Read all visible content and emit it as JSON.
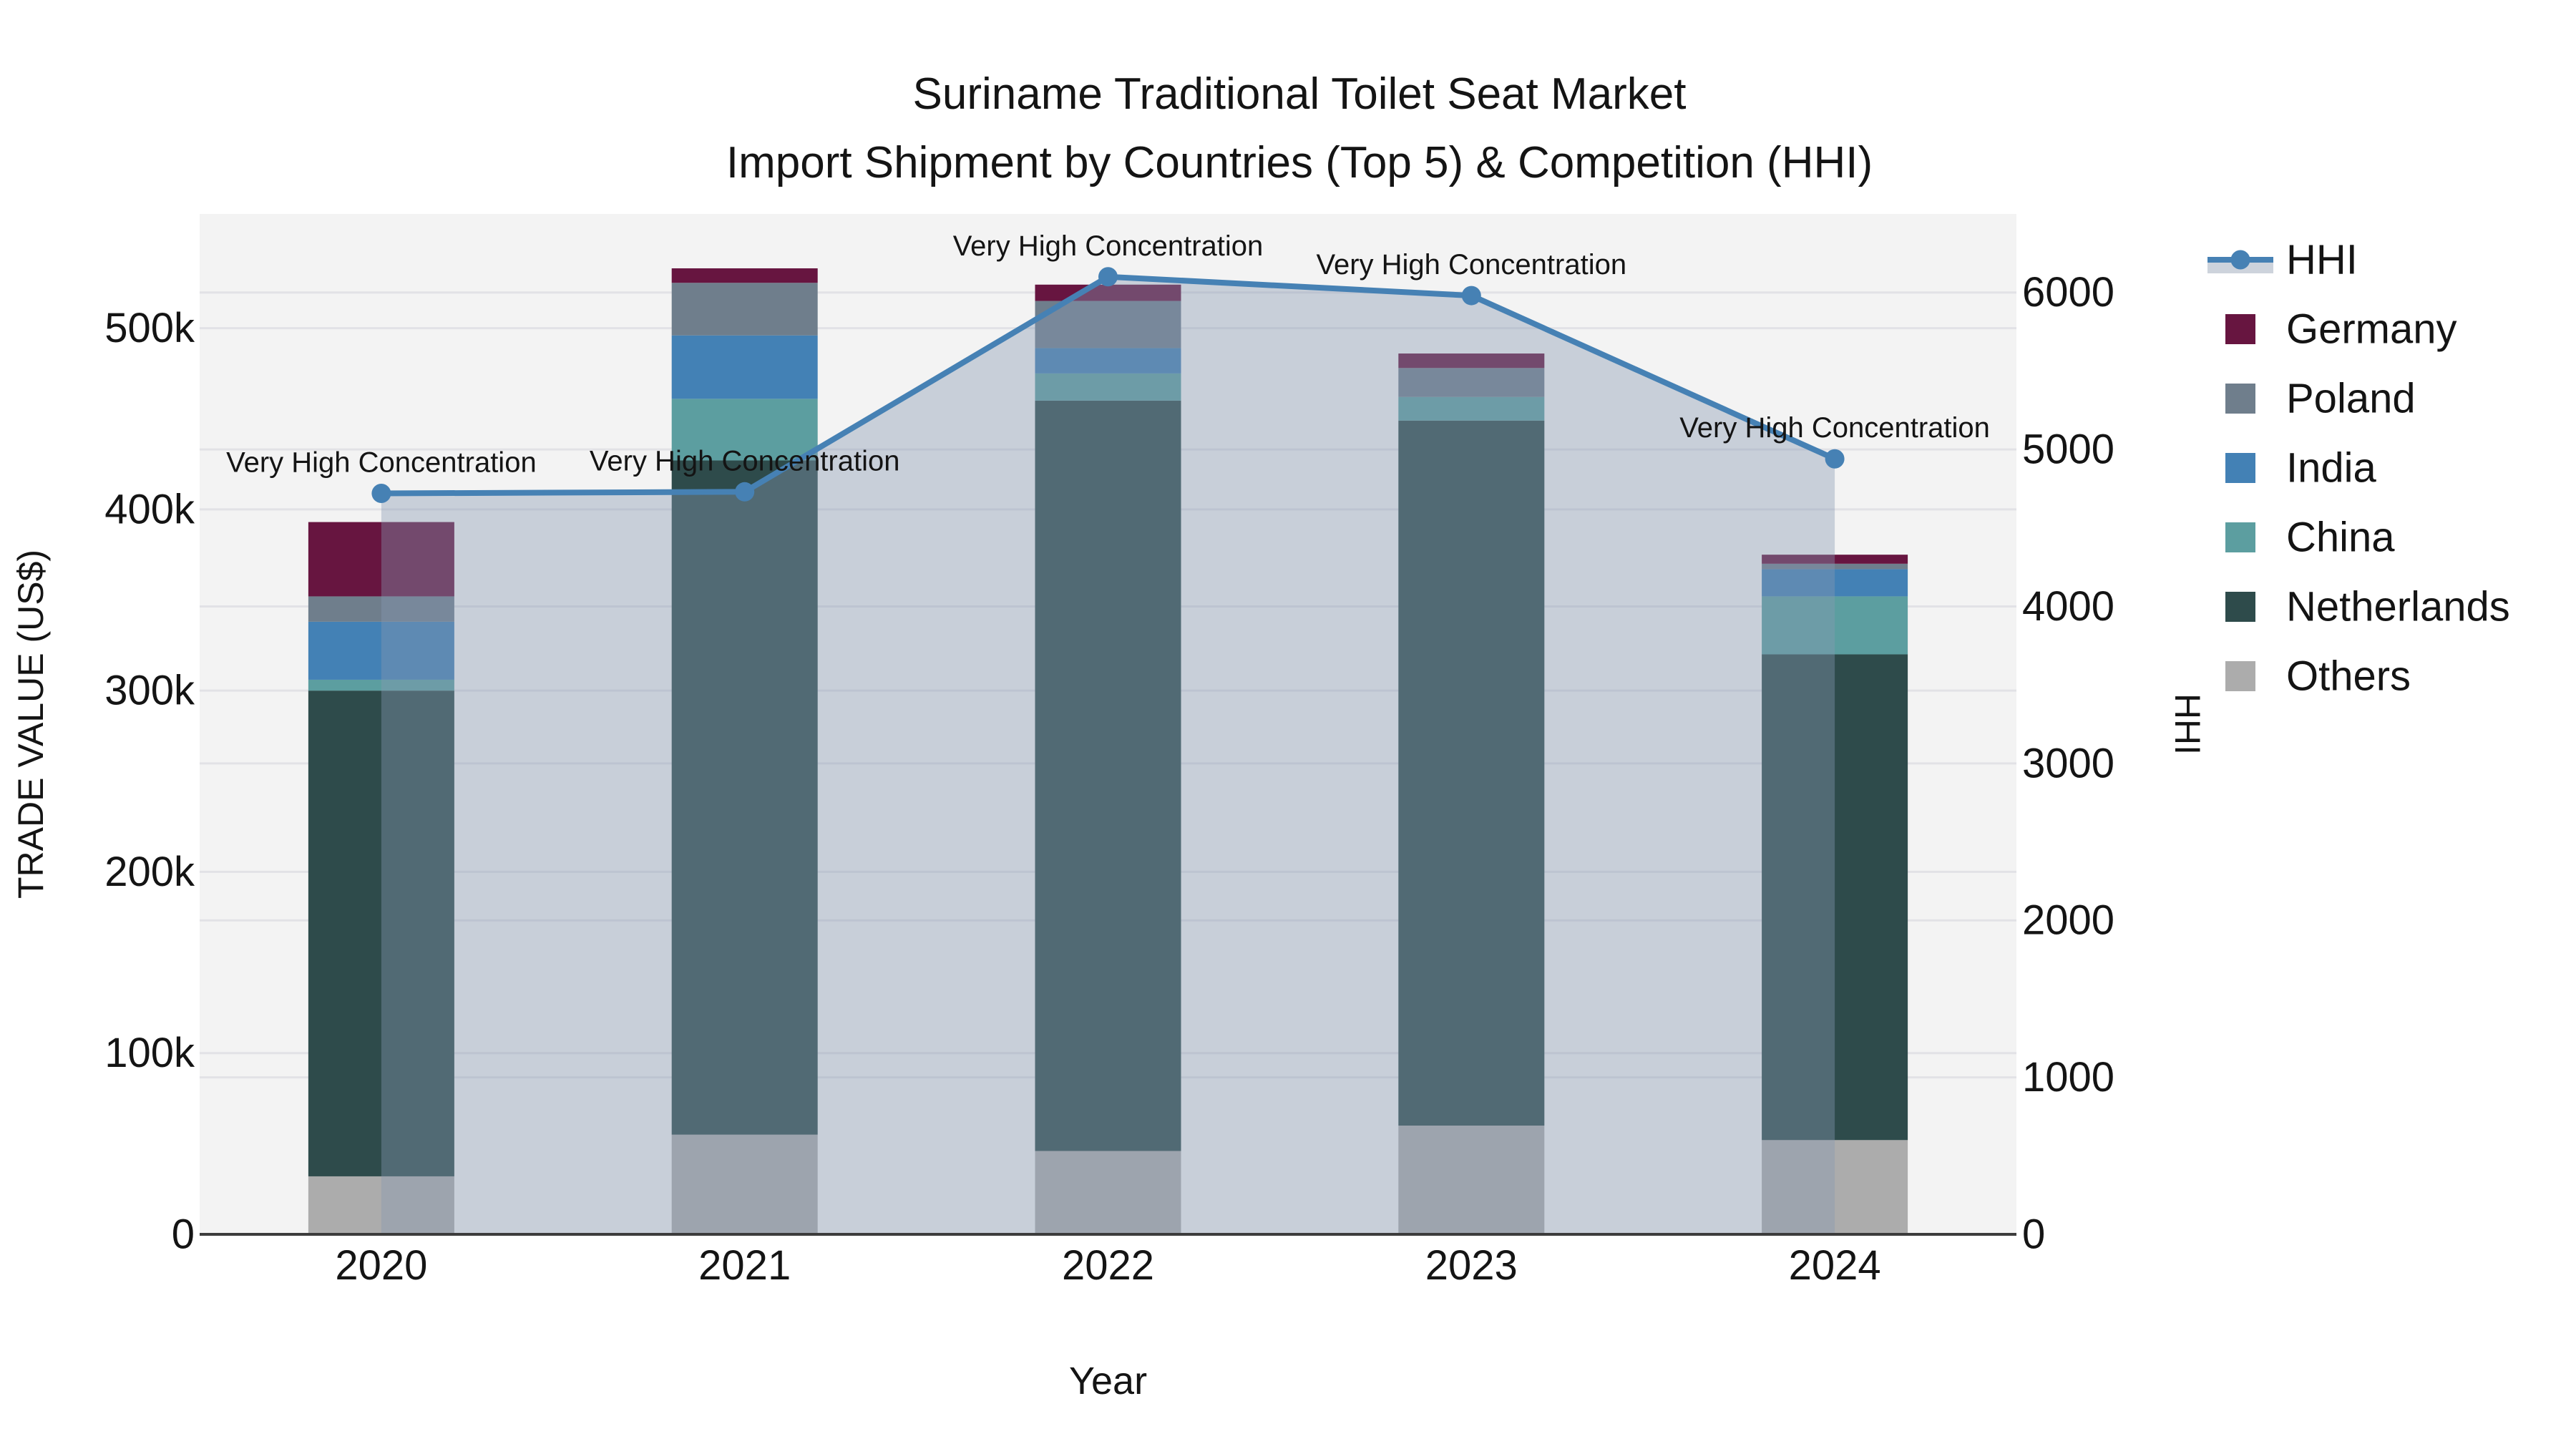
{
  "title": {
    "line1": "Suriname Traditional Toilet Seat Market",
    "line2": "Import Shipment by Countries (Top 5) & Competition (HHI)"
  },
  "chart_data": {
    "type": "bar+line",
    "categories": [
      "2020",
      "2021",
      "2022",
      "2023",
      "2024"
    ],
    "xlabel": "Year",
    "ylabel_left": "TRADE VALUE (US$)",
    "ylabel_right": "HHI",
    "y_left_ticks": [
      "0",
      "100k",
      "200k",
      "300k",
      "400k",
      "500k"
    ],
    "y_left_tick_values": [
      0,
      100000,
      200000,
      300000,
      400000,
      500000
    ],
    "ylim_left": [
      0,
      563000
    ],
    "y_right_ticks": [
      "0",
      "1000",
      "2000",
      "3000",
      "4000",
      "5000",
      "6000"
    ],
    "y_right_tick_values": [
      0,
      1000,
      2000,
      3000,
      4000,
      5000,
      6000
    ],
    "ylim_right": [
      0,
      6500
    ],
    "grid": true,
    "legend_position": "right",
    "series": [
      {
        "name": "Others",
        "color": "#ACACAC",
        "values": [
          32000,
          55000,
          46000,
          60000,
          52000
        ]
      },
      {
        "name": "Netherlands",
        "color": "#2E4B4B",
        "values": [
          268000,
          372000,
          414000,
          389000,
          268000
        ]
      },
      {
        "name": "China",
        "color": "#5C9EA0",
        "values": [
          6000,
          34000,
          15000,
          13000,
          32000
        ]
      },
      {
        "name": "India",
        "color": "#4381B5",
        "values": [
          32000,
          35000,
          14000,
          0,
          15000
        ]
      },
      {
        "name": "Poland",
        "color": "#6F7E8C",
        "values": [
          14000,
          29000,
          26000,
          16000,
          3000
        ]
      },
      {
        "name": "Germany",
        "color": "#671540",
        "values": [
          41000,
          8000,
          9000,
          8000,
          5000
        ]
      }
    ],
    "hhi": {
      "name": "HHI",
      "color": "#4681B4",
      "area_color": "rgba(136,152,178,0.40)",
      "values": [
        4720,
        4730,
        6100,
        5980,
        4940
      ]
    },
    "annotation_text": "Very High Concentration",
    "legend_order": [
      "HHI",
      "Germany",
      "Poland",
      "India",
      "China",
      "Netherlands",
      "Others"
    ],
    "colors": {
      "plot_background": "#F3F3F3",
      "gridline": "#E2E2E6",
      "axis_line": "#3C3C3C",
      "text": "#141414"
    }
  }
}
